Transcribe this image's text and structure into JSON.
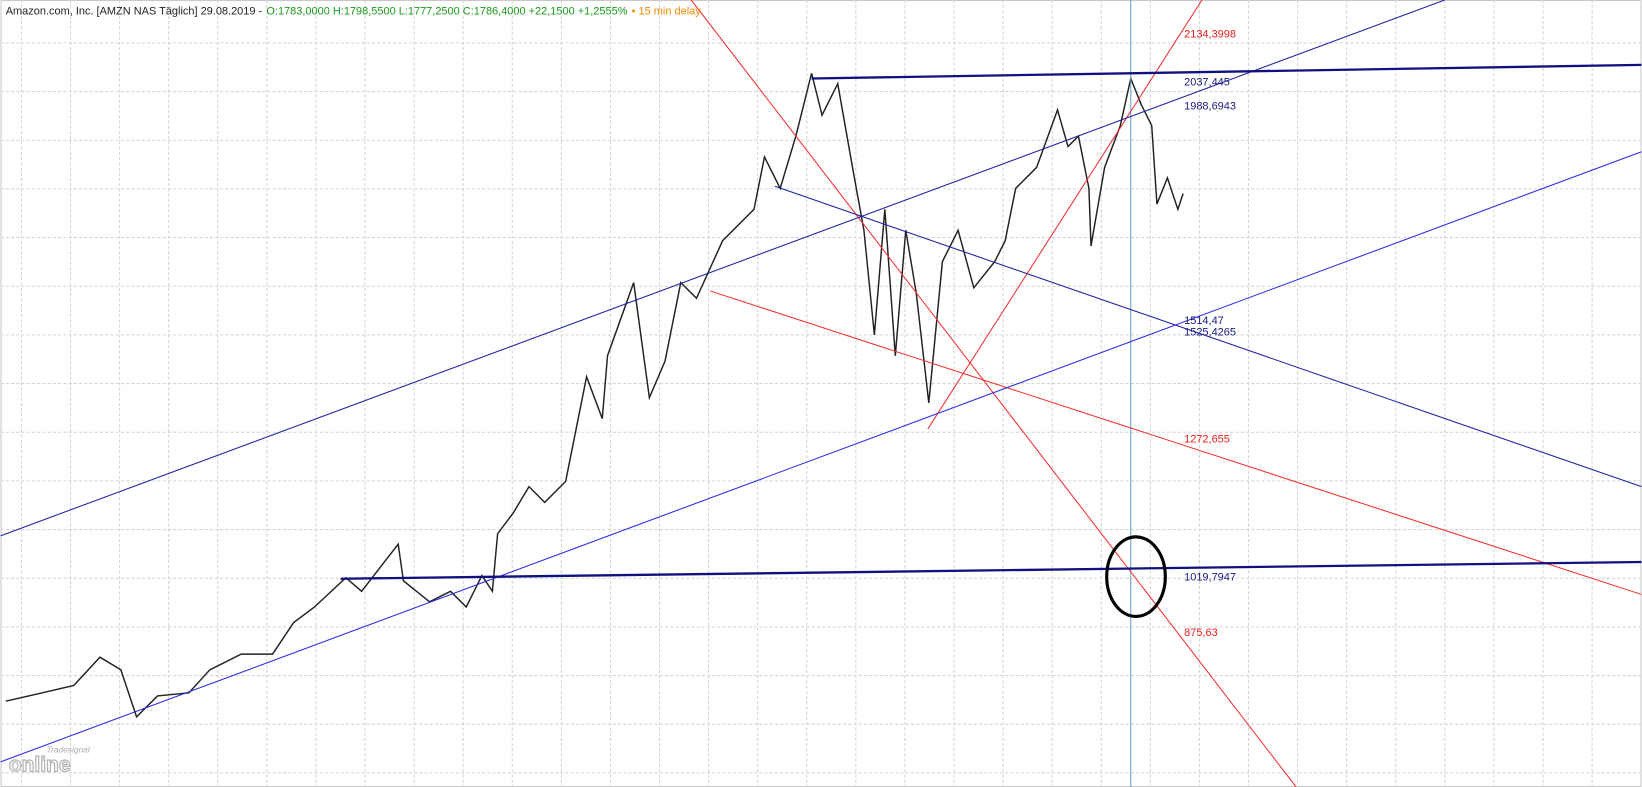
{
  "header": {
    "instrument": "Amazon.com, Inc. [AMZN NAS Täglich] 29.08.2019 -",
    "ohlc": "O:1783,0000 H:1798,5500 L:1777,2500 C:1786,4000 +22,1500 +1,2555%",
    "delay": "• 15 min delay"
  },
  "levels": [
    {
      "label": "2134,3998",
      "color": "#e8201c"
    },
    {
      "label": "2037,445",
      "color": "#1a1a80"
    },
    {
      "label": "1988,6943",
      "color": "#1a1a80"
    },
    {
      "label": "1514,47",
      "color": "#1a1a80"
    },
    {
      "label": "1525,4265",
      "color": "#1a1a80"
    },
    {
      "label": "1272,655",
      "color": "#e8201c"
    },
    {
      "label": "1019,7947",
      "color": "#1a1a80"
    },
    {
      "label": "875,63",
      "color": "#e8201c"
    }
  ],
  "logo": {
    "brand": "Tradesignal",
    "product": "online"
  }
}
